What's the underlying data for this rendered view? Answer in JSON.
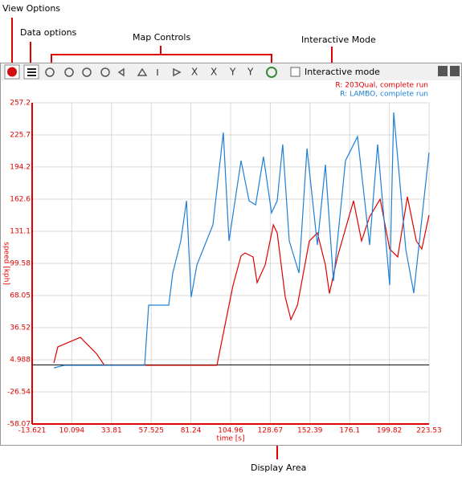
{
  "annotations": {
    "view_options": "View Options",
    "data_options": "Data options",
    "map_controls": "Map Controls",
    "interactive_mode": "Interactive Mode",
    "display_area": "Display Area"
  },
  "toolbar": {
    "interactive_checkbox": "Interactive mode"
  },
  "chart_data": {
    "type": "line",
    "xlabel": "time [s]",
    "ylabel": "speed [kph]",
    "xlim": [
      -13.621,
      223.53
    ],
    "xticks": [
      -13.621,
      10.094,
      33.81,
      57.525,
      81.24,
      104.96,
      128.67,
      152.39,
      176.1,
      199.82,
      223.53
    ],
    "ylim": [
      -58.07,
      257.2
    ],
    "yticks": [
      -58.07,
      -26.54,
      4.988,
      36.52,
      68.05,
      99.58,
      131.1,
      162.6,
      194.2,
      225.7,
      257.2
    ],
    "grid": true,
    "series": [
      {
        "name": "R:  203Qual, complete run",
        "color": "#e00000",
        "x": [
          -0.66,
          1.74,
          15.2,
          17.6,
          24.8,
          29.6,
          34.4,
          96.8,
          104.0,
          106.4,
          111.2,
          113.6,
          118.4,
          120.8,
          125.6,
          130.5,
          132.8,
          137.6,
          141.0,
          144.9,
          152.0,
          156.8,
          161.6,
          164.0,
          168.8,
          178.4,
          183.2,
          188.0,
          194.3,
          200.0,
          204.8,
          210.6,
          215.9,
          219.2,
          223.5
        ],
        "values": [
          1.8,
          17.6,
          27,
          23,
          11,
          -0.5,
          -0.5,
          -0.5,
          58.6,
          78,
          107,
          109.8,
          105.9,
          80.7,
          98,
          137.4,
          129.5,
          66.5,
          44.4,
          58.6,
          121.6,
          129.5,
          98,
          70,
          105.9,
          161,
          121.6,
          145.3,
          162.6,
          113.7,
          105.9,
          165,
          121.6,
          113.7,
          146.9
        ]
      },
      {
        "name": "R:  LAMBO, complete run",
        "color": "#1e7fd6",
        "x": [
          -0.66,
          5.6,
          29.6,
          53.6,
          56.0,
          68.0,
          70.4,
          75.2,
          78.6,
          81.4,
          84.8,
          94.4,
          100.6,
          104.0,
          111.2,
          116.0,
          119.9,
          124.6,
          129.4,
          132.8,
          136.1,
          140.0,
          145.8,
          150.6,
          156.8,
          161.6,
          166.4,
          173.6,
          180.8,
          188.0,
          192.8,
          200.0,
          202.4,
          209.6,
          214.4,
          223.5
        ],
        "values": [
          -3,
          -0.5,
          -0.5,
          -0.5,
          58.6,
          58.6,
          90.1,
          121.6,
          161,
          66.5,
          98,
          137.4,
          228,
          121.6,
          200.4,
          161,
          157,
          204.3,
          149.2,
          161,
          216.3,
          121.6,
          90.1,
          212.3,
          117.6,
          196.5,
          82.2,
          200.4,
          224,
          117.6,
          216.3,
          78.3,
          247.7,
          113.7,
          70.5,
          208.3
        ]
      }
    ]
  }
}
